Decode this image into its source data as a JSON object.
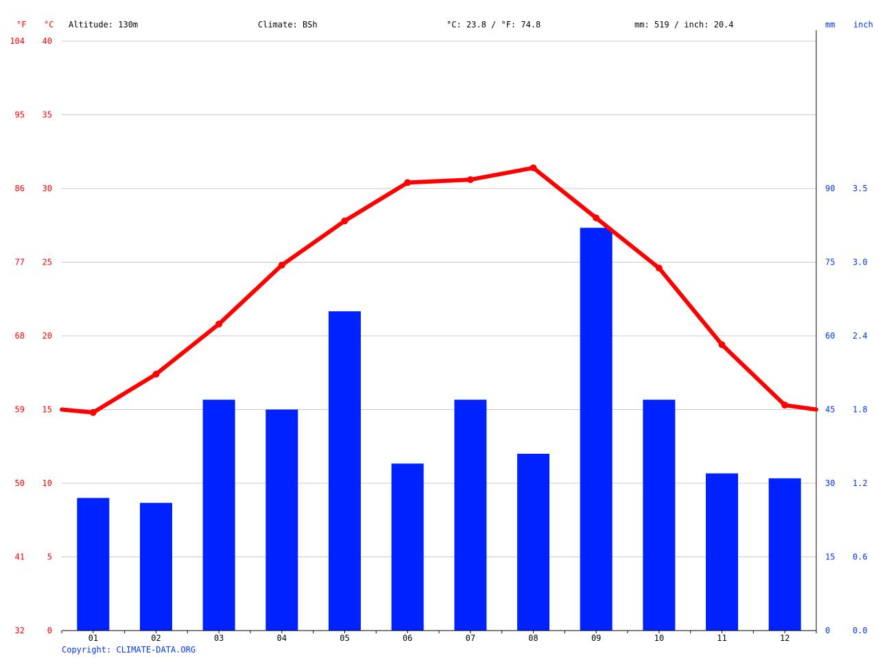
{
  "header": {
    "f_unit": "°F",
    "c_unit": "°C",
    "altitude": "Altitude: 130m",
    "climate": "Climate: BSh",
    "temp_avg": "°C: 23.8 / °F: 74.8",
    "precip_total": "mm: 519 / inch: 20.4",
    "mm_unit": "mm",
    "inch_unit": "inch"
  },
  "footer": {
    "copyright": "Copyright: CLIMATE-DATA.ORG"
  },
  "colors": {
    "temperature": "#ff0000",
    "precipitation": "#0022ff",
    "grid": "#c8c8c8",
    "right_axis_labels": "#0033ff"
  },
  "chart_data": {
    "type": "bar+line",
    "categories": [
      "01",
      "02",
      "03",
      "04",
      "05",
      "06",
      "07",
      "08",
      "09",
      "10",
      "11",
      "12"
    ],
    "series": [
      {
        "kind": "bar",
        "axis": "right",
        "unit": "mm",
        "values": [
          27,
          26,
          47,
          45,
          65,
          34,
          47,
          36,
          82,
          47,
          32,
          31
        ]
      },
      {
        "kind": "line",
        "axis": "left",
        "unit": "°C",
        "values": [
          14.8,
          17.4,
          20.8,
          24.8,
          27.8,
          30.4,
          30.6,
          31.4,
          28.0,
          24.6,
          19.4,
          15.3
        ],
        "edge_values": [
          15.0,
          15.0
        ]
      }
    ],
    "left_axis_c": {
      "ylim": [
        0,
        40
      ],
      "ticks": [
        "0",
        "5",
        "10",
        "15",
        "20",
        "25",
        "30",
        "35",
        "40"
      ]
    },
    "left_axis_f": {
      "ticks": [
        "32",
        "41",
        "50",
        "59",
        "68",
        "77",
        "86",
        "95",
        "104"
      ]
    },
    "right_axis_mm": {
      "ylim": [
        0,
        120
      ],
      "ticks": [
        "0",
        "15",
        "30",
        "45",
        "60",
        "75",
        "90"
      ]
    },
    "right_axis_inch": {
      "ticks": [
        "0.0",
        "0.6",
        "1.2",
        "1.8",
        "2.4",
        "3.0",
        "3.5"
      ]
    },
    "grid": true,
    "legend": "none"
  }
}
